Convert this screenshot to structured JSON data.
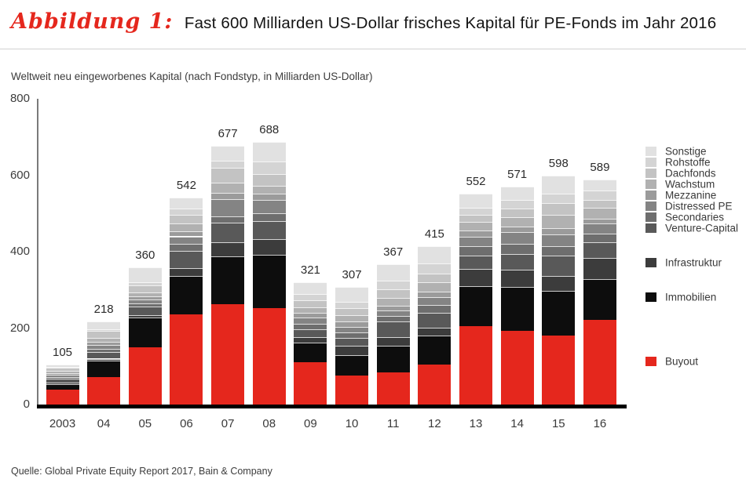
{
  "header": {
    "figure_label": "Abbildung 1:",
    "title": "Fast 600 Milliarden US-Dollar frisches Kapital für PE-Fonds im Jahr 2016"
  },
  "subtitle": "Weltweit neu eingeworbenes Kapital (nach Fondstyp, in Milliarden US-Dollar)",
  "source": "Quelle: Global Private Equity Report 2017, Bain & Company",
  "colors": {
    "accent_red": "#e5271d",
    "axis_line": "#7a7a7a",
    "baseline": "#000000"
  },
  "chart_data": {
    "type": "bar",
    "stacked": true,
    "title": "Fast 600 Milliarden US-Dollar frisches Kapital für PE-Fonds im Jahr 2016",
    "xlabel": "",
    "ylabel": "Milliarden US-Dollar",
    "ylim": [
      0,
      800
    ],
    "yticks": [
      0,
      200,
      400,
      600,
      800
    ],
    "grid": false,
    "legend_position": "right",
    "categories": [
      "2003",
      "04",
      "05",
      "06",
      "07",
      "08",
      "09",
      "10",
      "11",
      "12",
      "13",
      "14",
      "15",
      "16"
    ],
    "totals": [
      105,
      218,
      360,
      542,
      677,
      688,
      321,
      307,
      367,
      415,
      552,
      571,
      598,
      589
    ],
    "series": [
      {
        "name": "Buyout",
        "color": "#e5271d",
        "legend_gap": "large",
        "values": [
          38,
          72,
          150,
          235,
          262,
          252,
          110,
          76,
          84,
          104,
          205,
          193,
          180,
          221
        ]
      },
      {
        "name": "Immobilien",
        "color": "#0d0d0d",
        "legend_gap": "medium",
        "values": [
          16,
          42,
          78,
          102,
          125,
          140,
          52,
          53,
          70,
          76,
          104,
          115,
          118,
          107
        ]
      },
      {
        "name": "Infrastruktur",
        "color": "#3c3c3c",
        "legend_gap": "medium",
        "values": [
          4,
          6,
          5,
          20,
          38,
          41,
          14,
          24,
          23,
          22,
          46,
          44,
          39,
          55
        ]
      },
      {
        "name": "Venture-Capital",
        "color": "#595959",
        "legend_gap": "none",
        "values": [
          10,
          18,
          24,
          46,
          50,
          46,
          20,
          21,
          40,
          37,
          35,
          41,
          52,
          41
        ]
      },
      {
        "name": "Secondaries",
        "color": "#6e6e6e",
        "legend_gap": "none",
        "values": [
          4,
          8,
          8,
          18,
          18,
          22,
          15,
          14,
          14,
          22,
          25,
          27,
          25,
          24
        ]
      },
      {
        "name": "Distressed PE",
        "color": "#848484",
        "legend_gap": "none",
        "values": [
          6,
          10,
          10,
          19,
          45,
          34,
          16,
          16,
          16,
          20,
          25,
          31,
          32,
          25
        ]
      },
      {
        "name": "Mezzanine",
        "color": "#9b9b9b",
        "legend_gap": "none",
        "values": [
          4,
          8,
          9,
          14,
          16,
          17,
          13,
          13,
          12,
          14,
          15,
          15,
          16,
          14
        ]
      },
      {
        "name": "Wachstum",
        "color": "#b1b1b1",
        "legend_gap": "none",
        "values": [
          6,
          10,
          10,
          19,
          26,
          21,
          14,
          16,
          20,
          24,
          22,
          25,
          35,
          27
        ]
      },
      {
        "name": "Dachfonds",
        "color": "#c3c3c3",
        "legend_gap": "none",
        "values": [
          9,
          18,
          18,
          23,
          40,
          31,
          19,
          20,
          22,
          24,
          20,
          22,
          30,
          22
        ]
      },
      {
        "name": "Rohstoffe",
        "color": "#d4d4d4",
        "legend_gap": "none",
        "values": [
          2,
          5,
          8,
          17,
          17,
          32,
          16,
          16,
          24,
          26,
          18,
          23,
          24,
          23
        ]
      },
      {
        "name": "Sonstige",
        "color": "#e1e1e1",
        "legend_gap": "none",
        "values": [
          6,
          21,
          40,
          29,
          40,
          52,
          32,
          38,
          42,
          46,
          37,
          35,
          47,
          30
        ]
      }
    ]
  }
}
